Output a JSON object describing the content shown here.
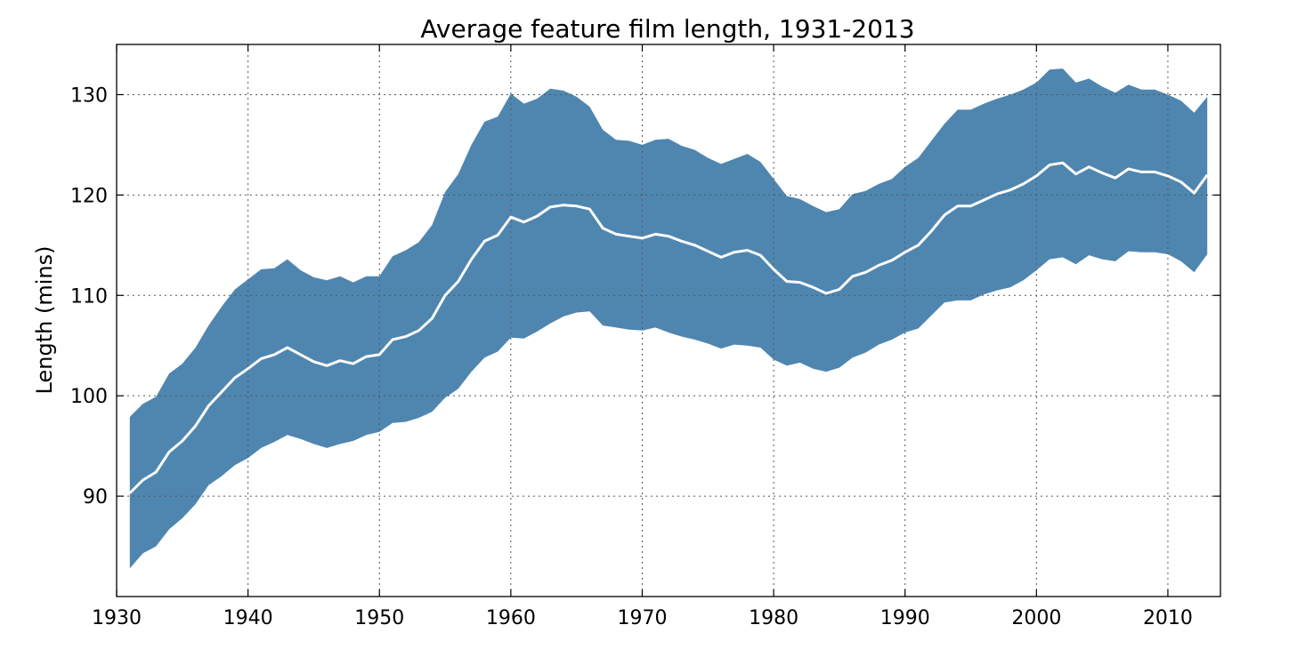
{
  "chart_data": {
    "type": "area",
    "title": "Average feature film length, 1931-2013",
    "xlabel": "",
    "ylabel": "Length (mins)",
    "xlim": [
      1930,
      2014
    ],
    "ylim": [
      80,
      135
    ],
    "x_ticks": [
      1930,
      1940,
      1950,
      1960,
      1970,
      1980,
      1990,
      2000,
      2010
    ],
    "y_ticks": [
      90,
      100,
      110,
      120,
      130
    ],
    "grid": true,
    "colors": {
      "band": "#4f86b0",
      "mean_line": "#ffffff"
    },
    "x": [
      1931,
      1932,
      1933,
      1934,
      1935,
      1936,
      1937,
      1938,
      1939,
      1940,
      1941,
      1942,
      1943,
      1944,
      1945,
      1946,
      1947,
      1948,
      1949,
      1950,
      1951,
      1952,
      1953,
      1954,
      1955,
      1956,
      1957,
      1958,
      1959,
      1960,
      1961,
      1962,
      1963,
      1964,
      1965,
      1966,
      1967,
      1968,
      1969,
      1970,
      1971,
      1972,
      1973,
      1974,
      1975,
      1976,
      1977,
      1978,
      1979,
      1980,
      1981,
      1982,
      1983,
      1984,
      1985,
      1986,
      1987,
      1988,
      1989,
      1990,
      1991,
      1992,
      1993,
      1994,
      1995,
      1996,
      1997,
      1998,
      1999,
      2000,
      2001,
      2002,
      2003,
      2004,
      2005,
      2006,
      2007,
      2008,
      2009,
      2010,
      2011,
      2012,
      2013
    ],
    "series": [
      {
        "values": [
          90.3,
          91.6,
          92.4,
          94.4,
          95.5,
          97.0,
          99.0,
          100.4,
          101.8,
          102.7,
          103.7,
          104.1,
          104.8,
          104.1,
          103.4,
          103.0,
          103.5,
          103.2,
          103.9,
          104.1,
          105.6,
          105.9,
          106.5,
          107.7,
          110.0,
          111.4,
          113.6,
          115.4,
          116.0,
          117.8,
          117.3,
          117.9,
          118.8,
          119.0,
          118.9,
          118.6,
          116.7,
          116.1,
          115.9,
          115.7,
          116.1,
          115.9,
          115.4,
          115.0,
          114.4,
          113.8,
          114.3,
          114.5,
          114.0,
          112.6,
          111.4,
          111.3,
          110.8,
          110.2,
          110.6,
          111.9,
          112.3,
          113.0,
          113.5,
          114.3,
          115.0,
          116.4,
          118.0,
          118.9,
          118.9,
          119.5,
          120.1,
          120.5,
          121.1,
          121.9,
          123.0,
          123.2,
          122.1,
          122.8,
          122.2,
          121.7,
          122.6,
          122.3,
          122.3,
          121.9,
          121.3,
          120.2,
          122.0
        ]
      }
    ],
    "band": {
      "upper": [
        97.9,
        99.2,
        99.9,
        102.2,
        103.2,
        104.8,
        107.0,
        108.9,
        110.6,
        111.6,
        112.6,
        112.7,
        113.6,
        112.5,
        111.8,
        111.5,
        111.9,
        111.3,
        111.9,
        111.9,
        113.9,
        114.5,
        115.3,
        117.0,
        120.3,
        122.1,
        125.0,
        127.3,
        127.8,
        130.1,
        129.1,
        129.6,
        130.6,
        130.4,
        129.8,
        128.8,
        126.5,
        125.5,
        125.4,
        125.0,
        125.5,
        125.6,
        124.9,
        124.5,
        123.7,
        123.1,
        123.6,
        124.1,
        123.3,
        121.6,
        119.9,
        119.6,
        118.9,
        118.3,
        118.6,
        120.1,
        120.4,
        121.1,
        121.6,
        122.8,
        123.7,
        125.4,
        127.1,
        128.5,
        128.5,
        129.1,
        129.6,
        130.0,
        130.5,
        131.2,
        132.5,
        132.6,
        131.2,
        131.6,
        130.8,
        130.2,
        131.0,
        130.5,
        130.5,
        130.0,
        129.4,
        128.2,
        129.8
      ],
      "lower": [
        82.8,
        84.3,
        85.0,
        86.7,
        87.8,
        89.2,
        91.1,
        92.0,
        93.1,
        93.8,
        94.8,
        95.4,
        96.1,
        95.7,
        95.2,
        94.8,
        95.2,
        95.5,
        96.1,
        96.4,
        97.3,
        97.4,
        97.8,
        98.4,
        99.8,
        100.7,
        102.4,
        103.8,
        104.4,
        105.8,
        105.7,
        106.4,
        107.2,
        107.9,
        108.3,
        108.4,
        107.0,
        106.8,
        106.6,
        106.5,
        106.8,
        106.3,
        105.9,
        105.6,
        105.2,
        104.7,
        105.1,
        105.0,
        104.8,
        103.6,
        103.0,
        103.3,
        102.7,
        102.4,
        102.8,
        103.8,
        104.3,
        105.1,
        105.6,
        106.3,
        106.7,
        108.0,
        109.3,
        109.5,
        109.5,
        110.1,
        110.5,
        110.8,
        111.5,
        112.5,
        113.6,
        113.8,
        113.1,
        114.0,
        113.6,
        113.4,
        114.4,
        114.3,
        114.3,
        114.1,
        113.4,
        112.3,
        114.1
      ]
    }
  }
}
